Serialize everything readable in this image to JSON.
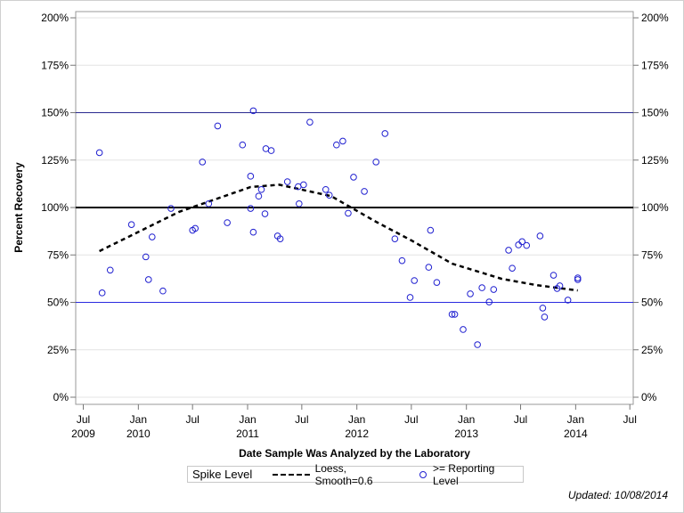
{
  "chart_data": {
    "type": "scatter",
    "title": "",
    "xlabel": "Date Sample Was Analyzed by the Laboratory",
    "ylabel": "Percent Recovery",
    "ylim": [
      0,
      200
    ],
    "xlim": [
      "2009-06-15",
      "2014-07-20"
    ],
    "y_ticks": [
      "0%",
      "25%",
      "50%",
      "75%",
      "100%",
      "125%",
      "150%",
      "175%",
      "200%"
    ],
    "y_tick_values": [
      0,
      25,
      50,
      75,
      100,
      125,
      150,
      175,
      200
    ],
    "x_ticks": [
      {
        "date": "2009-07-01",
        "line1": "Jul",
        "line2": "2009"
      },
      {
        "date": "2010-01-01",
        "line1": "Jan",
        "line2": "2010"
      },
      {
        "date": "2010-07-01",
        "line1": "Jul",
        "line2": ""
      },
      {
        "date": "2011-01-01",
        "line1": "Jan",
        "line2": "2011"
      },
      {
        "date": "2011-07-01",
        "line1": "Jul",
        "line2": ""
      },
      {
        "date": "2012-01-01",
        "line1": "Jan",
        "line2": "2012"
      },
      {
        "date": "2012-07-01",
        "line1": "Jul",
        "line2": ""
      },
      {
        "date": "2013-01-01",
        "line1": "Jan",
        "line2": "2013"
      },
      {
        "date": "2013-07-01",
        "line1": "Jul",
        "line2": ""
      },
      {
        "date": "2014-01-01",
        "line1": "Jan",
        "line2": "2014"
      },
      {
        "date": "2014-07-01",
        "line1": "Jul",
        "line2": ""
      }
    ],
    "grid": true,
    "reference_lines": [
      {
        "value": 150,
        "color": "#2a2a90"
      },
      {
        "value": 100,
        "color": "#000000"
      },
      {
        "value": 50,
        "color": "#2a2ae0"
      }
    ],
    "series": [
      {
        "name": ">= Reporting Level",
        "type": "scatter",
        "color": "#2020d0",
        "points": [
          [
            "2009-08-24",
            128.9
          ],
          [
            "2009-09-02",
            55
          ],
          [
            "2009-09-29",
            67
          ],
          [
            "2009-12-09",
            91
          ],
          [
            "2010-01-26",
            74
          ],
          [
            "2010-02-04",
            62
          ],
          [
            "2010-02-16",
            84.5
          ],
          [
            "2010-03-24",
            56
          ],
          [
            "2010-04-20",
            99.5
          ],
          [
            "2010-07-01",
            88
          ],
          [
            "2010-07-10",
            89
          ],
          [
            "2010-08-03",
            124
          ],
          [
            "2010-08-24",
            102
          ],
          [
            "2010-09-23",
            143
          ],
          [
            "2010-10-25",
            92
          ],
          [
            "2010-12-15",
            133
          ],
          [
            "2011-01-11",
            116.5
          ],
          [
            "2011-01-11",
            99.5
          ],
          [
            "2011-01-20",
            151
          ],
          [
            "2011-01-20",
            87
          ],
          [
            "2011-02-07",
            106
          ],
          [
            "2011-02-16",
            109.5
          ],
          [
            "2011-02-28",
            96.7
          ],
          [
            "2011-03-03",
            131
          ],
          [
            "2011-03-21",
            130
          ],
          [
            "2011-04-11",
            85
          ],
          [
            "2011-04-20",
            83.5
          ],
          [
            "2011-05-14",
            113.6
          ],
          [
            "2011-06-19",
            111
          ],
          [
            "2011-06-22",
            102
          ],
          [
            "2011-07-07",
            112
          ],
          [
            "2011-07-28",
            145
          ],
          [
            "2011-09-19",
            109.5
          ],
          [
            "2011-10-01",
            106.5
          ],
          [
            "2011-10-25",
            133
          ],
          [
            "2011-11-15",
            135
          ],
          [
            "2011-12-03",
            97
          ],
          [
            "2011-12-21",
            116
          ],
          [
            "2012-01-26",
            108.5
          ],
          [
            "2012-03-05",
            124
          ],
          [
            "2012-04-04",
            139
          ],
          [
            "2012-05-07",
            83.5
          ],
          [
            "2012-05-31",
            72
          ],
          [
            "2012-06-27",
            52.6
          ],
          [
            "2012-07-11",
            61.5
          ],
          [
            "2012-08-28",
            68.5
          ],
          [
            "2012-09-03",
            88
          ],
          [
            "2012-09-24",
            60.5
          ],
          [
            "2012-11-14",
            43.7
          ],
          [
            "2012-11-23",
            43.7
          ],
          [
            "2012-12-21",
            35.7
          ],
          [
            "2013-01-14",
            54.5
          ],
          [
            "2013-02-07",
            27.7
          ],
          [
            "2013-02-22",
            57.7
          ],
          [
            "2013-03-18",
            50.2
          ],
          [
            "2013-04-02",
            56.8
          ],
          [
            "2013-05-22",
            77.5
          ],
          [
            "2013-06-03",
            68
          ],
          [
            "2013-06-24",
            80.3
          ],
          [
            "2013-07-06",
            82
          ],
          [
            "2013-07-21",
            80
          ],
          [
            "2013-09-04",
            85
          ],
          [
            "2013-09-13",
            47
          ],
          [
            "2013-09-19",
            42.3
          ],
          [
            "2013-10-19",
            64.3
          ],
          [
            "2013-10-31",
            57.3
          ],
          [
            "2013-11-09",
            58.7
          ],
          [
            "2013-12-06",
            51.2
          ],
          [
            "2014-01-08",
            62.9
          ],
          [
            "2014-01-08",
            62
          ]
        ]
      },
      {
        "name": "Loess, Smooth=0.6",
        "type": "line",
        "style": "dashed",
        "color": "#000000",
        "points": [
          [
            "2009-08-24",
            77
          ],
          [
            "2010-05-17",
            97.7
          ],
          [
            "2011-01-11",
            110.8
          ],
          [
            "2011-04-17",
            112
          ],
          [
            "2011-10-07",
            106
          ],
          [
            "2012-03-05",
            92.5
          ],
          [
            "2012-07-02",
            82.6
          ],
          [
            "2012-11-14",
            70.4
          ],
          [
            "2013-04-29",
            62.4
          ],
          [
            "2013-08-26",
            59
          ],
          [
            "2014-01-08",
            56.3
          ]
        ]
      }
    ]
  },
  "legend": {
    "title": "Spike Level",
    "loess_label": "Loess, Smooth=0.6",
    "points_label": ">= Reporting Level"
  },
  "footer": {
    "updated": "Updated: 10/08/2014"
  }
}
